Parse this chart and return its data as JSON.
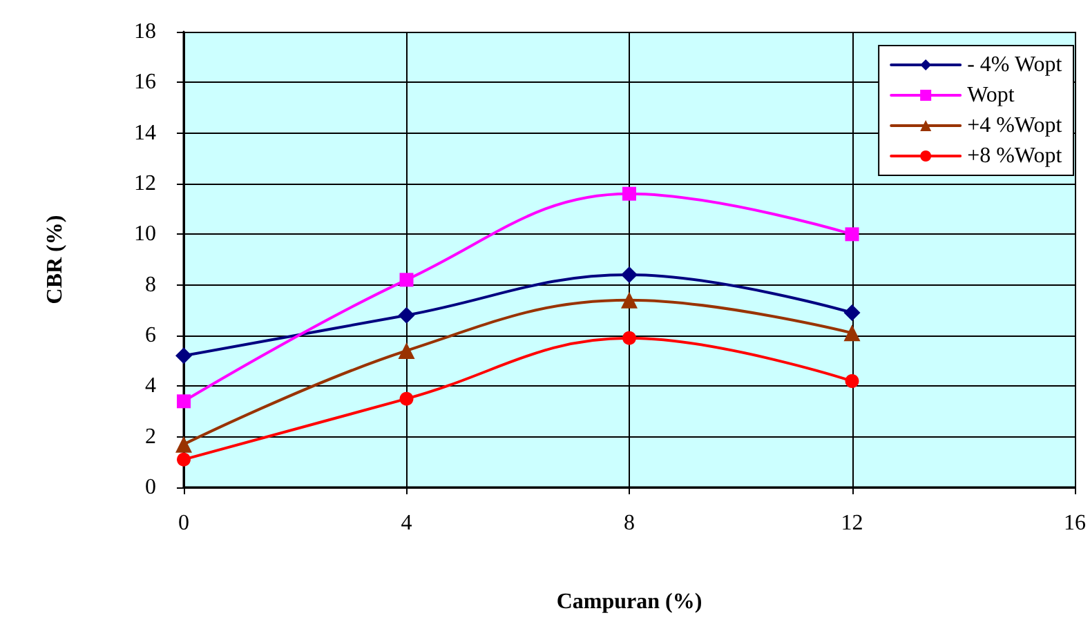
{
  "chart_data": {
    "type": "line",
    "xlabel": "Campuran (%)",
    "ylabel": "CBR (%)",
    "x": [
      0,
      4,
      8,
      12
    ],
    "series": [
      {
        "name": "- 4% Wopt",
        "color": "#000080",
        "marker": "diamond",
        "values": [
          5.2,
          6.8,
          8.4,
          6.9
        ]
      },
      {
        "name": "Wopt",
        "color": "#ff00ff",
        "marker": "square",
        "values": [
          3.4,
          8.2,
          11.6,
          10.0
        ]
      },
      {
        "name": "+4 %Wopt",
        "color": "#993300",
        "marker": "triangle",
        "values": [
          1.7,
          5.4,
          7.4,
          6.1
        ]
      },
      {
        "name": "+8 %Wopt",
        "color": "#ff0000",
        "marker": "circle",
        "values": [
          1.1,
          3.5,
          5.9,
          4.2
        ]
      }
    ],
    "xlim": [
      0,
      16
    ],
    "xticks": [
      0,
      4,
      8,
      12,
      16
    ],
    "ylim": [
      0,
      18
    ],
    "yticks": [
      0,
      2,
      4,
      6,
      8,
      10,
      12,
      14,
      16,
      18
    ],
    "grid": true,
    "legend": "top right",
    "line_style": "solid"
  }
}
